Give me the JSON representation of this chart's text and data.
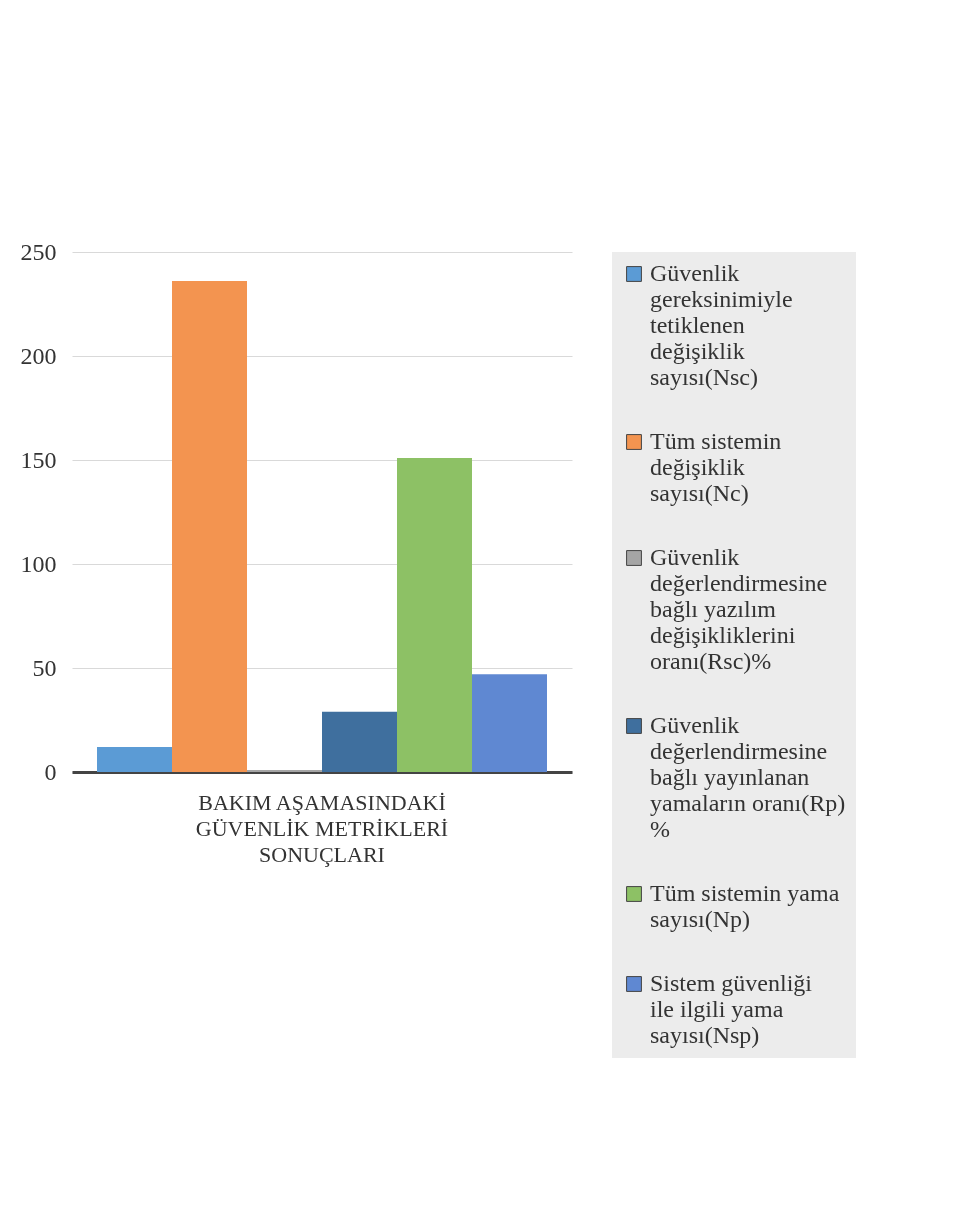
{
  "chart_data": {
    "type": "bar",
    "categories": [
      "BAKIM AŞAMASINDAKİ GÜVENLİK METRİKLERİ SONUÇLARI"
    ],
    "series": [
      {
        "name": "Güvenlik gereksinimiyle tetiklenen değişiklik sayısı(Nsc)",
        "color": "#5b9bd5",
        "values": [
          12
        ]
      },
      {
        "name": "Tüm sistemin değişiklik sayısı(Nc)",
        "color": "#f39450",
        "values": [
          236
        ]
      },
      {
        "name": "Güvenlik değerlendirmesine bağlı yazılım değişikliklerini oranı(Rsc)%",
        "color": "#a5a5a5",
        "values": [
          1
        ]
      },
      {
        "name": "Güvenlik değerlendirmesine bağlı yayınlanan yamaların oranı(Rp) %",
        "color": "#3f6f9e",
        "values": [
          29
        ]
      },
      {
        "name": "Tüm sistemin yama sayısı(Np)",
        "color": "#8dc165",
        "values": [
          151
        ]
      },
      {
        "name": "Sistem güvenliği ile ilgili yama sayısı(Nsp)",
        "color": "#5f88d2",
        "values": [
          47
        ]
      }
    ],
    "ylim": [
      0,
      250
    ],
    "yticks": [
      0,
      50,
      100,
      150,
      200,
      250
    ],
    "grid": "y",
    "legend": "right"
  }
}
